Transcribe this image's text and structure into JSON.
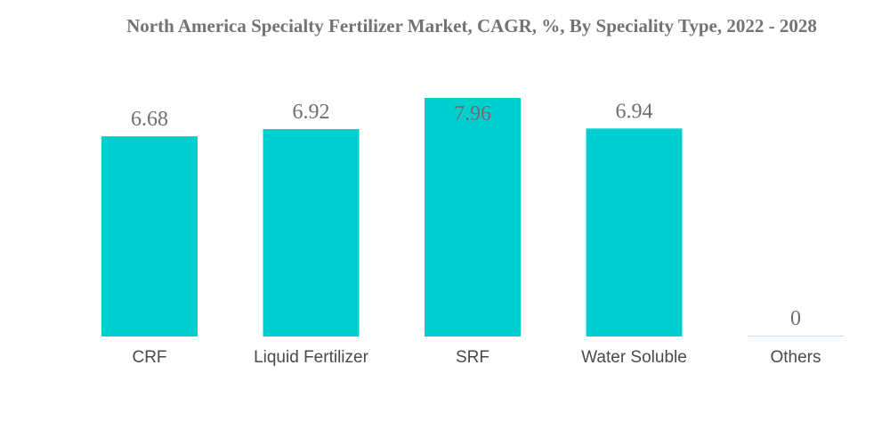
{
  "chart_data": {
    "type": "bar",
    "title": "North America Specialty Fertilizer Market, CAGR, %, By Speciality Type, 2022 - 2028",
    "categories": [
      "CRF",
      "Liquid Fertilizer",
      "SRF",
      "Water Soluble",
      "Others"
    ],
    "values": [
      6.68,
      6.92,
      7.96,
      6.94,
      0
    ],
    "value_labels": [
      "6.68",
      "6.92",
      "7.96",
      "6.94",
      "0"
    ],
    "xlabel": "",
    "ylabel": "",
    "ylim": [
      0,
      7.96
    ],
    "grid": false,
    "legend": "none",
    "bar_color": "#00CFCF"
  }
}
